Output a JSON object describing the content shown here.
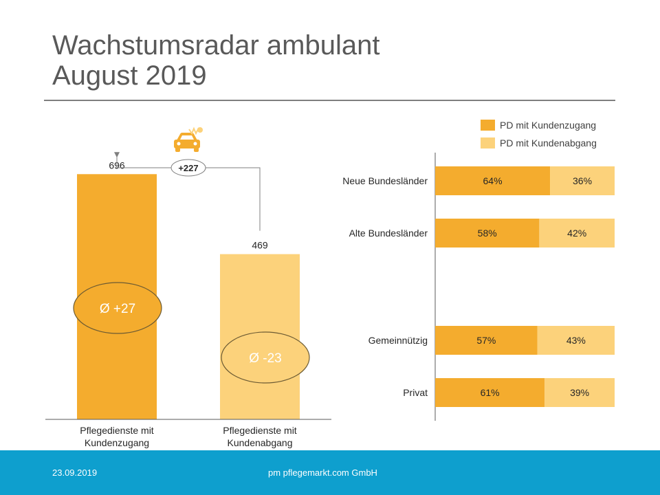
{
  "slide": {
    "title_line1": "Wachstumsradar ambulant",
    "title_line2": "August 2019"
  },
  "footer": {
    "date": "23.09.2019",
    "company": "pm pflegemarkt.com GmbH"
  },
  "colors": {
    "dark": "#f4ac2e",
    "light": "#fcd27b",
    "footer": "#0e9fce"
  },
  "icons": [
    "car-icon"
  ],
  "chart_data": [
    {
      "type": "bar",
      "categories": [
        "Pflegedienste mit Kundenzugang",
        "Pflegedienste mit Kundenabgang"
      ],
      "values": [
        696,
        469
      ],
      "ylim": [
        0,
        800
      ],
      "difference_label": "+227",
      "averages": [
        "Ø +27",
        "Ø -23"
      ]
    },
    {
      "type": "bar",
      "orientation": "horizontal",
      "stacked": "percent",
      "categories": [
        "Neue Bundesländer",
        "Alte Bundesländer",
        "Gemeinnützig",
        "Privat"
      ],
      "series": [
        {
          "name": "PD mit Kundenzugang",
          "values": [
            64,
            58,
            57,
            61
          ],
          "labels": [
            "64%",
            "58%",
            "57%",
            "61%"
          ]
        },
        {
          "name": "PD mit Kundenabgang",
          "values": [
            36,
            42,
            43,
            39
          ],
          "labels": [
            "36%",
            "42%",
            "43%",
            "39%"
          ]
        }
      ],
      "legend": "top-right"
    }
  ]
}
